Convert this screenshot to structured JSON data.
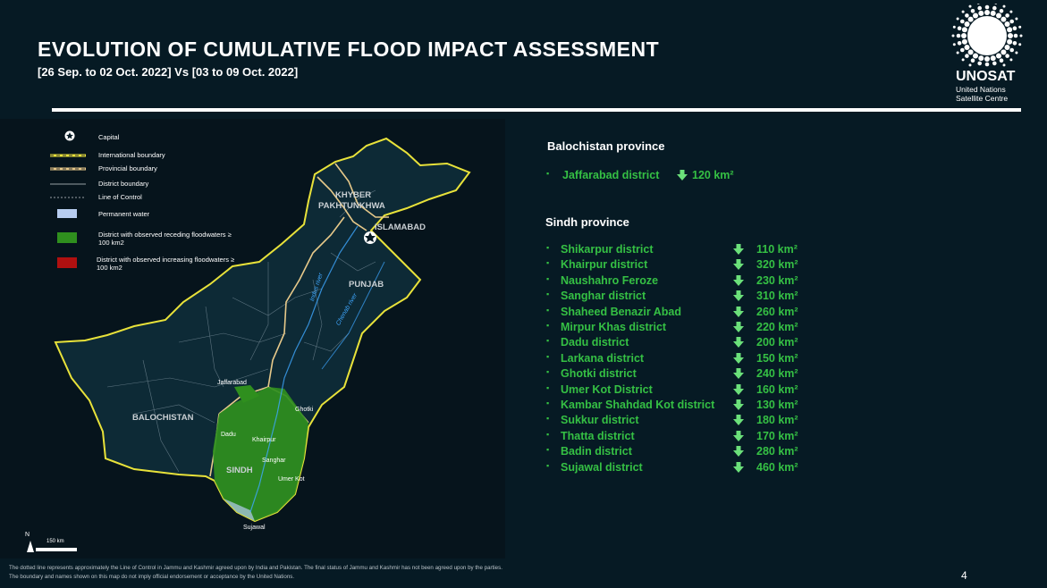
{
  "header": {
    "title": "EVOLUTION OF CUMULATIVE FLOOD IMPACT ASSESSMENT",
    "subtitle": "[26 Sep. to 02 Oct. 2022] Vs [03 to 09 Oct. 2022]"
  },
  "logo": {
    "name": "UNOSAT",
    "sub1": "United Nations",
    "sub2": "Satellite Centre"
  },
  "legend": {
    "capital": "Capital",
    "international": "International boundary",
    "provincial": "Provincial boundary",
    "district": "District boundary",
    "loc": "Line of Control",
    "water": "Permanent water",
    "receding_1": "District with observed receding floodwaters ≥",
    "receding_2": "100 km2",
    "increasing_1": "District with observed increasing floodwaters ≥",
    "increasing_2": "100 km2",
    "colors": {
      "international": "#e8e23a",
      "provincial": "#e7c98a",
      "water": "#b7cdf0",
      "receding": "#2f8f1e",
      "increasing": "#b01010"
    }
  },
  "map": {
    "provinces": {
      "kp_1": "KHYBER",
      "kp_2": "PAKHTUNKHWA",
      "punjab": "PUNJAB",
      "balochistan": "BALOCHISTAN",
      "sindh": "SINDH"
    },
    "capital": "ISLAMABAD",
    "rivers": {
      "indus": "Indus river",
      "chenab": "Chenab river"
    },
    "districts": {
      "jaffarabad": "Jaffarabad",
      "ghotki": "Ghotki",
      "dadu": "Dadu",
      "khairpur": "Khairpur",
      "sanghar": "Sanghar",
      "umerkot": "Umer Kot",
      "sujawal": "Sujawal"
    },
    "scale": "150 km",
    "north": "N"
  },
  "balochistan": {
    "heading": "Balochistan province",
    "districts": [
      {
        "name": "Jaffarabad district",
        "area": "120 km²",
        "trend": "decrease"
      }
    ]
  },
  "sindh": {
    "heading": "Sindh province",
    "districts": [
      {
        "name": "Shikarpur district",
        "area": "110 km²",
        "trend": "decrease"
      },
      {
        "name": "Khairpur district",
        "area": "320 km²",
        "trend": "decrease"
      },
      {
        "name": "Naushahro Feroze",
        "area": "230 km²",
        "trend": "decrease"
      },
      {
        "name": "Sanghar district",
        "area": "310 km²",
        "trend": "decrease"
      },
      {
        "name": "Shaheed Benazir Abad",
        "area": "260 km²",
        "trend": "decrease"
      },
      {
        "name": "Mirpur Khas district",
        "area": "220 km²",
        "trend": "decrease"
      },
      {
        "name": "Dadu district",
        "area": "200 km²",
        "trend": "decrease"
      },
      {
        "name": "Larkana district",
        "area": "150 km²",
        "trend": "decrease"
      },
      {
        "name": "Ghotki district",
        "area": "240 km²",
        "trend": "decrease"
      },
      {
        "name": "Umer Kot District",
        "area": "160 km²",
        "trend": "decrease"
      },
      {
        "name": "Kambar Shahdad Kot district",
        "area": "130 km²",
        "trend": "decrease"
      },
      {
        "name": "Sukkur district",
        "area": "180 km²",
        "trend": "decrease"
      },
      {
        "name": "Thatta district",
        "area": "170 km²",
        "trend": "decrease"
      },
      {
        "name": "Badin district",
        "area": "280 km²",
        "trend": "decrease"
      },
      {
        "name": "Sujawal district",
        "area": "460 km²",
        "trend": "decrease"
      }
    ]
  },
  "footer": {
    "disclaimer_1": "The dotted line represents approximately the Line of Control in Jammu and Kashmir agreed upon by India and Pakistan. The final status of Jammu and Kashmir has not been agreed upon by the parties.",
    "disclaimer_2": "The boundary and names shown on this map do not imply official endorsement or acceptance by the United Nations.",
    "page": "4"
  }
}
